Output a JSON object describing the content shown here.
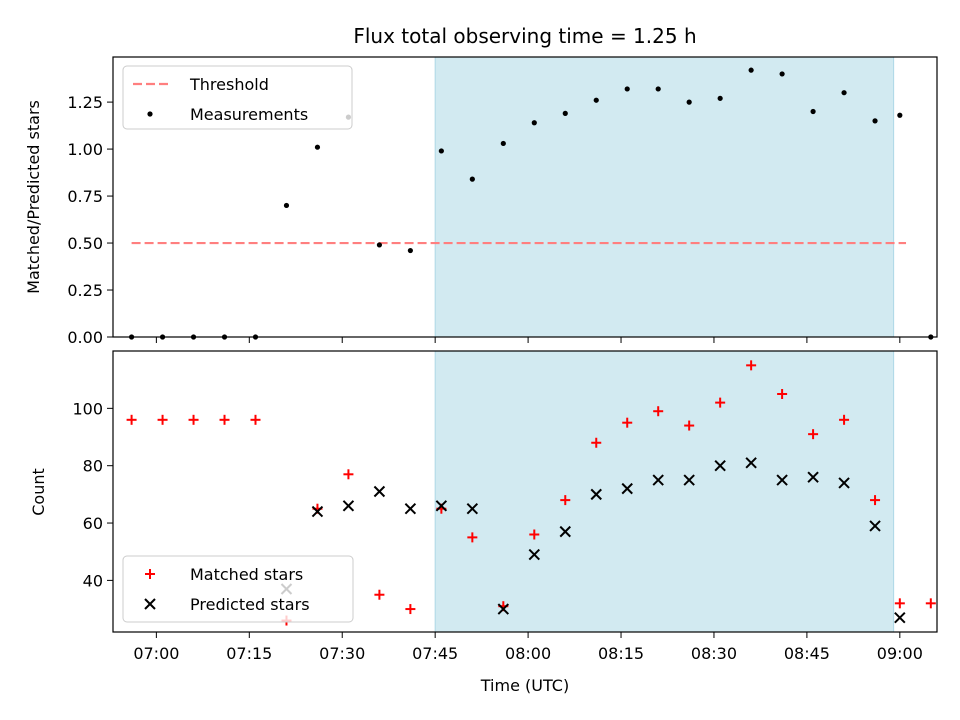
{
  "chart_data": [
    {
      "type": "scatter",
      "title": "Flux total observing time = 1.25 h",
      "xlabel": "",
      "ylabel": "Matched/Predicted stars",
      "ylim": [
        0,
        1.49
      ],
      "xlim": [
        "06:53",
        "09:06"
      ],
      "yticks": [
        "0.00",
        "0.25",
        "0.50",
        "0.75",
        "1.00",
        "1.25"
      ],
      "xticks": [
        "07:00",
        "07:15",
        "07:30",
        "07:45",
        "08:00",
        "08:15",
        "08:30",
        "08:45",
        "09:00"
      ],
      "shaded_interval": {
        "x": [
          "07:45",
          "08:59"
        ],
        "color": "#add8e6"
      },
      "threshold": {
        "name": "Threshold",
        "y": 0.5,
        "x": [
          "06:56",
          "09:01"
        ],
        "color": "#ff7f7f",
        "style": "dashed"
      },
      "series": [
        {
          "name": "Measurements",
          "marker": "dot",
          "color": "#000000",
          "points": [
            [
              "06:56",
              0.0
            ],
            [
              "07:01",
              0.0
            ],
            [
              "07:06",
              0.0
            ],
            [
              "07:11",
              0.0
            ],
            [
              "07:16",
              0.0
            ],
            [
              "07:21",
              0.7
            ],
            [
              "07:26",
              1.01
            ],
            [
              "07:31",
              1.17
            ],
            [
              "07:36",
              0.49
            ],
            [
              "07:41",
              0.46
            ],
            [
              "07:46",
              0.99
            ],
            [
              "07:51",
              0.84
            ],
            [
              "07:56",
              1.03
            ],
            [
              "08:01",
              1.14
            ],
            [
              "08:06",
              1.19
            ],
            [
              "08:11",
              1.26
            ],
            [
              "08:16",
              1.32
            ],
            [
              "08:21",
              1.32
            ],
            [
              "08:26",
              1.25
            ],
            [
              "08:31",
              1.27
            ],
            [
              "08:36",
              1.42
            ],
            [
              "08:41",
              1.4
            ],
            [
              "08:46",
              1.2
            ],
            [
              "08:51",
              1.3
            ],
            [
              "08:56",
              1.15
            ],
            [
              "09:00",
              1.18
            ],
            [
              "09:05",
              0.0
            ]
          ]
        }
      ],
      "legend_position": "upper-left"
    },
    {
      "type": "scatter",
      "title": "",
      "xlabel": "Time (UTC)",
      "ylabel": "Count",
      "ylim": [
        22,
        120
      ],
      "xlim": [
        "06:53",
        "09:06"
      ],
      "yticks": [
        "40",
        "60",
        "80",
        "100"
      ],
      "xticks": [
        "07:00",
        "07:15",
        "07:30",
        "07:45",
        "08:00",
        "08:15",
        "08:30",
        "08:45",
        "09:00"
      ],
      "shaded_interval": {
        "x": [
          "07:45",
          "08:59"
        ],
        "color": "#add8e6"
      },
      "series": [
        {
          "name": "Matched stars",
          "marker": "plus",
          "color": "#ff0000",
          "points": [
            [
              "06:56",
              96
            ],
            [
              "07:01",
              96
            ],
            [
              "07:06",
              96
            ],
            [
              "07:11",
              96
            ],
            [
              "07:16",
              96
            ],
            [
              "07:21",
              26
            ],
            [
              "07:26",
              65
            ],
            [
              "07:31",
              77
            ],
            [
              "07:36",
              35
            ],
            [
              "07:41",
              30
            ],
            [
              "07:46",
              65
            ],
            [
              "07:51",
              55
            ],
            [
              "07:56",
              31
            ],
            [
              "08:01",
              56
            ],
            [
              "08:06",
              68
            ],
            [
              "08:11",
              88
            ],
            [
              "08:16",
              95
            ],
            [
              "08:21",
              99
            ],
            [
              "08:26",
              94
            ],
            [
              "08:31",
              102
            ],
            [
              "08:36",
              115
            ],
            [
              "08:41",
              105
            ],
            [
              "08:46",
              91
            ],
            [
              "08:51",
              96
            ],
            [
              "08:56",
              68
            ],
            [
              "09:00",
              32
            ],
            [
              "09:05",
              32
            ]
          ]
        },
        {
          "name": "Predicted stars",
          "marker": "x",
          "color": "#000000",
          "points": [
            [
              "07:21",
              37
            ],
            [
              "07:26",
              64
            ],
            [
              "07:31",
              66
            ],
            [
              "07:36",
              71
            ],
            [
              "07:41",
              65
            ],
            [
              "07:46",
              66
            ],
            [
              "07:51",
              65
            ],
            [
              "07:56",
              30
            ],
            [
              "08:01",
              49
            ],
            [
              "08:06",
              57
            ],
            [
              "08:11",
              70
            ],
            [
              "08:16",
              72
            ],
            [
              "08:21",
              75
            ],
            [
              "08:26",
              75
            ],
            [
              "08:31",
              80
            ],
            [
              "08:36",
              81
            ],
            [
              "08:41",
              75
            ],
            [
              "08:46",
              76
            ],
            [
              "08:51",
              74
            ],
            [
              "08:56",
              59
            ],
            [
              "09:00",
              27
            ]
          ]
        }
      ],
      "legend_position": "lower-left"
    }
  ]
}
